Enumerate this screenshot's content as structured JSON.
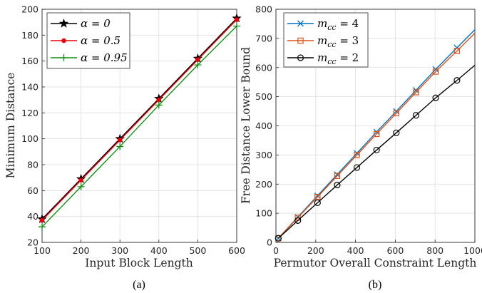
{
  "chart_data": [
    {
      "type": "line",
      "caption": "(a)",
      "xlabel": "Input Block Length",
      "ylabel": "Minimum Distance",
      "xlim": [
        100,
        600
      ],
      "ylim": [
        20,
        200
      ],
      "xticks": [
        100,
        200,
        300,
        400,
        500,
        600
      ],
      "yticks": [
        20,
        40,
        60,
        80,
        100,
        120,
        140,
        160,
        180,
        200
      ],
      "grid": true,
      "legend_position": "top-left",
      "x": [
        100,
        200,
        300,
        400,
        500,
        600
      ],
      "series": [
        {
          "name": "α = 0",
          "color": "#000000",
          "marker": "star",
          "values": [
            38,
            69,
            100,
            131,
            162,
            193
          ]
        },
        {
          "name": "α = 0.5",
          "color": "#e8000b",
          "marker": "dot",
          "values": [
            37,
            68,
            99,
            130,
            161,
            192
          ]
        },
        {
          "name": "α = 0.95",
          "color": "#138d13",
          "marker": "plus",
          "values": [
            32,
            63,
            94,
            126,
            157,
            187
          ]
        }
      ]
    },
    {
      "type": "line",
      "caption": "(b)",
      "xlabel": "Permutor Overall Constraint Length",
      "ylabel": "Free Distance Lower Bound",
      "xlim": [
        0,
        1000
      ],
      "ylim": [
        0,
        800
      ],
      "xticks": [
        0,
        200,
        400,
        600,
        800,
        1000
      ],
      "yticks": [
        0,
        100,
        200,
        300,
        400,
        500,
        600,
        700,
        800
      ],
      "grid": true,
      "legend_position": "top-left",
      "x": [
        12,
        110,
        209,
        308,
        407,
        506,
        605,
        704,
        803,
        910
      ],
      "series": [
        {
          "name": "m_cc = 4",
          "label_main": "m",
          "label_sub": "cc",
          "label_rest": " = 4",
          "color": "#0072bd",
          "marker": "x",
          "values": [
            14,
            87,
            160,
            233,
            306,
            379,
            450,
            522,
            594,
            668
          ],
          "end": [
            1000,
            730
          ]
        },
        {
          "name": "m_cc = 3",
          "label_main": "m",
          "label_sub": "cc",
          "label_rest": " = 3",
          "color": "#d95319",
          "marker": "square",
          "values": [
            14,
            85,
            156,
            228,
            300,
            372,
            443,
            515,
            586,
            657
          ],
          "end": [
            1000,
            718
          ]
        },
        {
          "name": "m_cc = 2",
          "label_main": "m",
          "label_sub": "cc",
          "label_rest": " = 2",
          "color": "#000000",
          "marker": "circle",
          "values": [
            14,
            75,
            136,
            197,
            257,
            317,
            376,
            436,
            496,
            556
          ],
          "end": [
            1000,
            608
          ]
        }
      ]
    }
  ]
}
